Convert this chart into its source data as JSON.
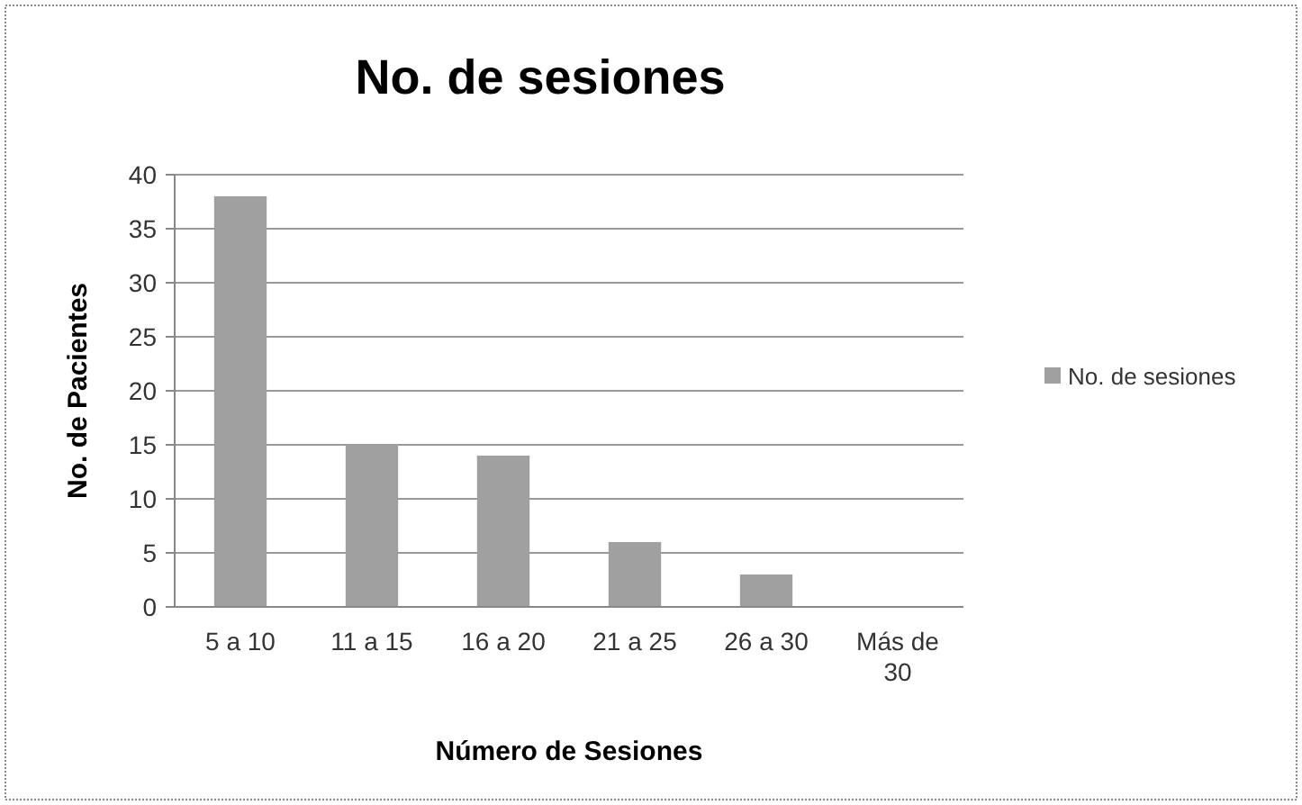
{
  "chart_data": {
    "type": "bar",
    "title": "No. de sesiones",
    "xlabel": "Número de Sesiones",
    "ylabel": "No. de Pacientes",
    "categories": [
      "5 a 10",
      "11 a 15",
      "16 a 20",
      "21 a 25",
      "26 a 30",
      "Más de 30"
    ],
    "series": [
      {
        "name": "No. de sesiones",
        "color": "#a0a0a0",
        "values": [
          38,
          15,
          14,
          6,
          3,
          0
        ]
      }
    ],
    "ylim": [
      0,
      40
    ],
    "yticks": [
      0,
      5,
      10,
      15,
      20,
      25,
      30,
      35,
      40
    ],
    "grid": "y",
    "legend": "right"
  }
}
